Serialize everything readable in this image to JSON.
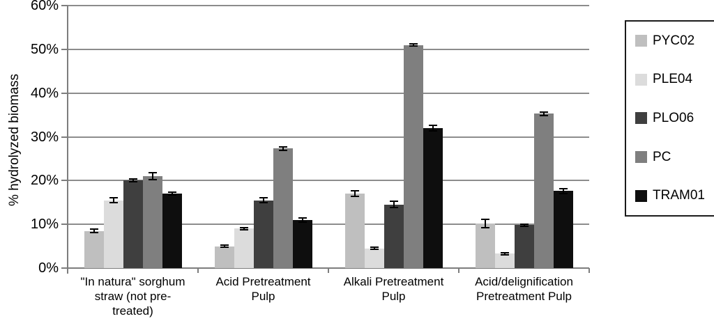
{
  "chart_data": {
    "type": "bar",
    "title": "",
    "xlabel": "",
    "ylabel": "% hydrolyzed biomass",
    "ylim": [
      0,
      60
    ],
    "ytick_step": 10,
    "ytick_labels": [
      "0%",
      "10%",
      "20%",
      "30%",
      "40%",
      "50%",
      "60%"
    ],
    "grid": true,
    "legend_position": "right",
    "error_bars": true,
    "error_color": "#000000",
    "gridline_color": "#8c8c8c",
    "categories": [
      {
        "label": "\"In natura\" sorghum straw (not pre-treated)",
        "lines": [
          "\"In natura\" sorghum",
          "straw (not pre-",
          "treated)"
        ]
      },
      {
        "label": "Acid Pretreatment Pulp",
        "lines": [
          "Acid Pretreatment",
          "Pulp"
        ]
      },
      {
        "label": "Alkali Pretreatment Pulp",
        "lines": [
          "Alkali Pretreatment",
          "Pulp"
        ]
      },
      {
        "label": "Acid/delignification Pretreatment Pulp",
        "lines": [
          "Acid/delignification",
          "Pretreatment Pulp"
        ]
      }
    ],
    "series": [
      {
        "name": "PYC02",
        "color": "#bfbfbf",
        "values": [
          8.5,
          5.0,
          17.0,
          10.2
        ],
        "errors": [
          0.4,
          0.3,
          0.6,
          1.0
        ]
      },
      {
        "name": "PLE04",
        "color": "#dcdcdc",
        "values": [
          15.5,
          9.0,
          4.5,
          3.3
        ],
        "errors": [
          0.6,
          0.3,
          0.2,
          0.2
        ]
      },
      {
        "name": "PLO06",
        "color": "#3f3f3f",
        "values": [
          20.0,
          15.5,
          14.5,
          9.8
        ],
        "errors": [
          0.3,
          0.5,
          0.7,
          0.3
        ]
      },
      {
        "name": "PC",
        "color": "#7f7f7f",
        "values": [
          21.0,
          27.3,
          51.0,
          35.3
        ],
        "errors": [
          0.8,
          0.4,
          0.3,
          0.4
        ]
      },
      {
        "name": "TRAM01",
        "color": "#0e0e0e",
        "values": [
          17.0,
          11.0,
          32.0,
          17.6
        ],
        "errors": [
          0.3,
          0.5,
          0.7,
          0.5
        ]
      }
    ]
  }
}
